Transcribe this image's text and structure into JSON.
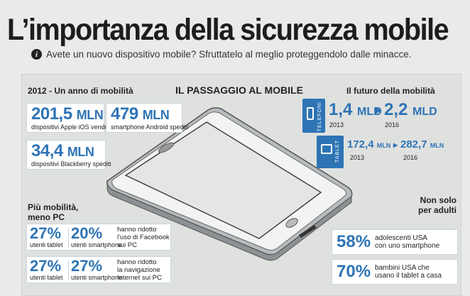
{
  "header": {
    "title": "L’importanza della sicurezza mobile",
    "subtitle": "Avete un nuovo dispositivo mobile? Sfruttatelo al meglio proteggendolo dalle minacce.",
    "info_icon": "i"
  },
  "center": {
    "title": "IL PASSAGGIO AL MOBILE"
  },
  "year2012": {
    "title": "2012 - Un anno di mobilità",
    "stats": [
      {
        "value": "201,5",
        "unit": "MLN",
        "caption": "dispositivi Apple iOS venduti"
      },
      {
        "value": "479",
        "unit": "MLN",
        "caption": "smartphone Android spediti"
      },
      {
        "value": "34,4",
        "unit": "MLN",
        "caption": "dispositivi Blackberry spediti"
      }
    ]
  },
  "future": {
    "title": "Il futuro della mobilità",
    "phones": {
      "label": "TELEFONI",
      "from_value": "1,4",
      "from_unit": "MLD",
      "from_year": "2013",
      "to_value": "2,2",
      "to_unit": "MLD",
      "to_year": "2016"
    },
    "tablets": {
      "label": "TABLET",
      "from_value": "172,4",
      "from_unit": "MLN",
      "from_year": "2013",
      "to_value": "282,7",
      "to_unit": "MLN",
      "to_year": "2016"
    }
  },
  "mobility": {
    "title_line1": "Più mobilità,",
    "title_line2": "meno PC",
    "rows": [
      {
        "pct_a": "27%",
        "cap_a": "utenti tablet",
        "pct_b": "20%",
        "cap_b": "utenti smartphone",
        "note": "hanno ridotto\nl'uso di Facebook\nsui PC"
      },
      {
        "pct_a": "27%",
        "cap_a": "utenti tablet",
        "pct_b": "27%",
        "cap_b": "utenti smartphone",
        "note": "hanno ridotto\nla navigazione\nInternet sui PC"
      }
    ]
  },
  "adults": {
    "title_line1": "Non solo",
    "title_line2": "per adulti",
    "stats": [
      {
        "pct": "58%",
        "desc": "adolescenti USA\ncon uno smartphone"
      },
      {
        "pct": "70%",
        "desc": "bambini USA che\nusano il tablet a casa"
      }
    ]
  },
  "colors": {
    "accent": "#2e74b5",
    "background": "#e9ebe9",
    "panel": "#dfe1df"
  }
}
